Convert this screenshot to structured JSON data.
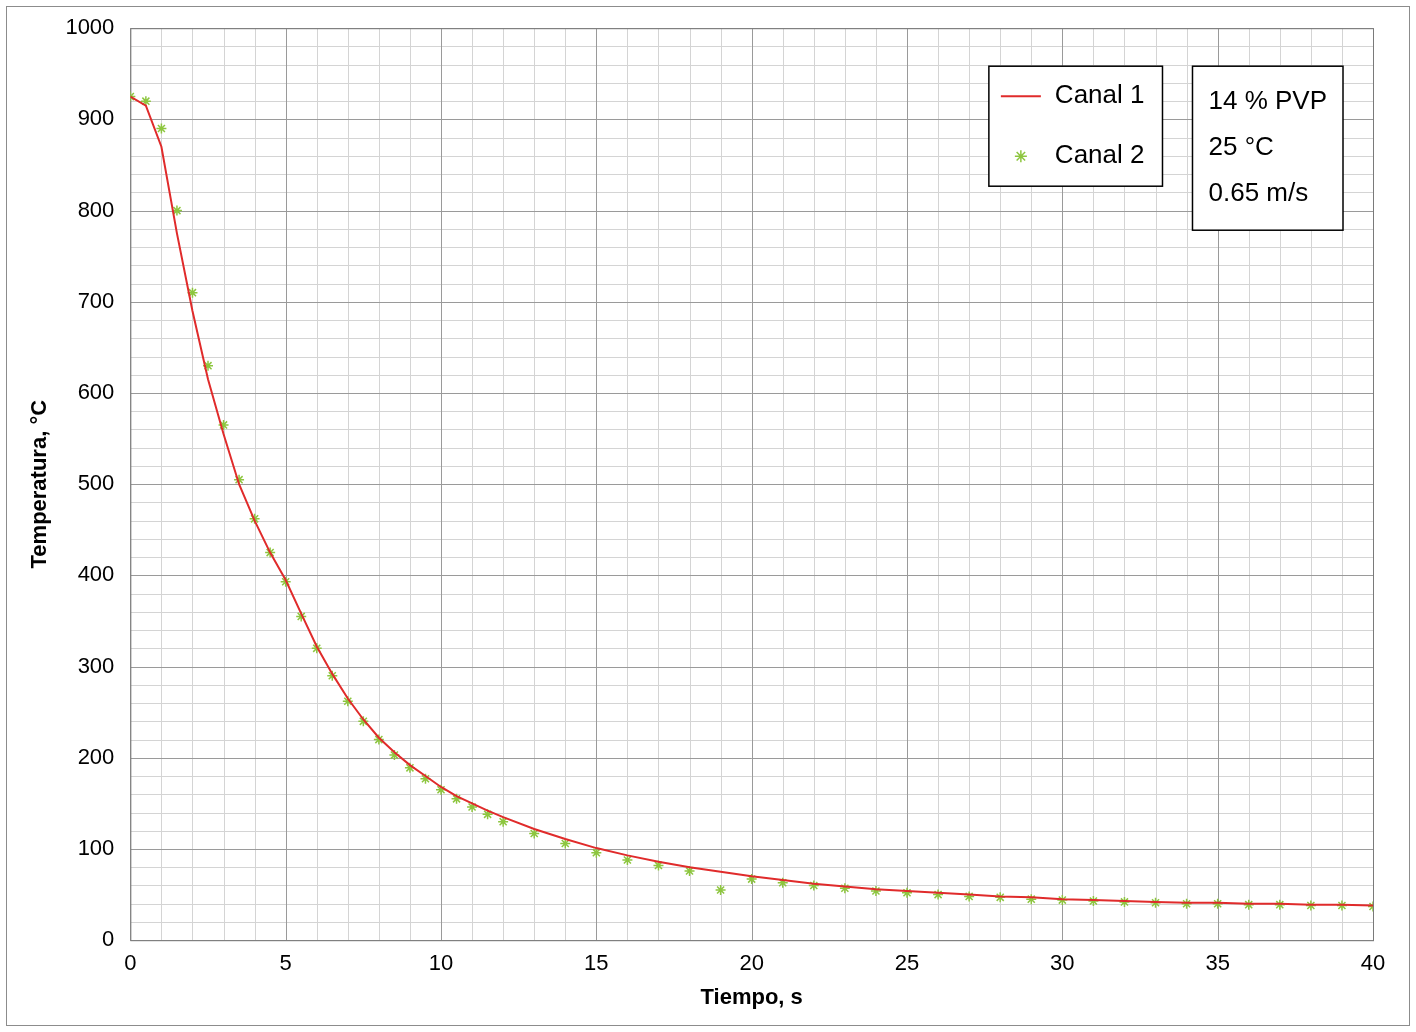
{
  "chart_data": {
    "type": "line",
    "x_label": "Tiempo, s",
    "y_label": "Temperatura, °C",
    "x": [
      0,
      0.5,
      1,
      1.5,
      2,
      2.5,
      3,
      3.5,
      4,
      4.5,
      5,
      5.5,
      6,
      6.5,
      7,
      7.5,
      8,
      8.5,
      9,
      9.5,
      10,
      10.5,
      11,
      11.5,
      12,
      13,
      14,
      15,
      16,
      17,
      18,
      19,
      20,
      21,
      22,
      23,
      24,
      25,
      26,
      27,
      28,
      29,
      30,
      31,
      32,
      33,
      34,
      35,
      36,
      37,
      38,
      39,
      40
    ],
    "series": [
      {
        "name": "Canal 1",
        "color": "#e02b2b",
        "marker": "none",
        "line_style": "solid",
        "values": [
          925,
          915,
          870,
          775,
          690,
          615,
          555,
          500,
          460,
          425,
          395,
          358,
          322,
          292,
          265,
          242,
          222,
          206,
          192,
          180,
          168,
          158,
          150,
          142,
          135,
          122,
          111,
          101,
          93,
          86,
          80,
          75,
          70,
          66,
          62,
          59,
          56,
          54,
          52,
          50,
          48,
          47,
          45,
          44,
          43,
          42,
          41,
          41,
          40,
          40,
          39,
          39,
          38
        ]
      },
      {
        "name": "Canal 2",
        "color": "#8dc63f",
        "marker": "star",
        "line_style": "none",
        "values": [
          925,
          920,
          890,
          800,
          710,
          630,
          565,
          505,
          462,
          425,
          393,
          355,
          320,
          290,
          262,
          240,
          220,
          203,
          189,
          177,
          165,
          155,
          146,
          138,
          130,
          117,
          106,
          96,
          88,
          82,
          76,
          55,
          67,
          63,
          60,
          57,
          54,
          52,
          50,
          48,
          47,
          45,
          44,
          43,
          42,
          41,
          40,
          40,
          39,
          39,
          38,
          38,
          37
        ]
      }
    ],
    "xlim": [
      0,
      40
    ],
    "xticks": [
      0,
      5,
      10,
      15,
      20,
      25,
      30,
      35,
      40
    ],
    "ylim": [
      0,
      1000
    ],
    "yticks": [
      0,
      100,
      200,
      300,
      400,
      500,
      600,
      700,
      800,
      900,
      1000
    ],
    "grid": true,
    "legend": "top-right",
    "annotations": [
      "14 % PVP",
      "25 °C",
      "0.65 m/s"
    ]
  }
}
